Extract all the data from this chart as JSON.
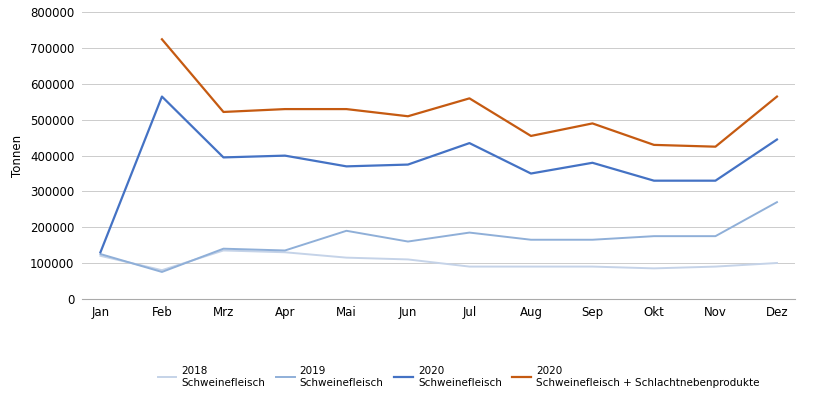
{
  "months": [
    "Jan",
    "Feb",
    "Mrz",
    "Apr",
    "Mai",
    "Jun",
    "Jul",
    "Aug",
    "Sep",
    "Okt",
    "Nov",
    "Dez"
  ],
  "series_2018": [
    120000,
    80000,
    135000,
    130000,
    115000,
    110000,
    90000,
    90000,
    90000,
    85000,
    90000,
    100000
  ],
  "series_2019": [
    125000,
    75000,
    140000,
    135000,
    190000,
    160000,
    185000,
    165000,
    165000,
    175000,
    175000,
    270000
  ],
  "series_2020_pork": [
    130000,
    565000,
    395000,
    400000,
    370000,
    375000,
    435000,
    350000,
    380000,
    330000,
    330000,
    445000
  ],
  "series_2020_total": [
    null,
    725000,
    522000,
    530000,
    530000,
    510000,
    560000,
    455000,
    490000,
    430000,
    425000,
    565000
  ],
  "color_2018": "#c5d3e8",
  "color_2019": "#8fafd8",
  "color_2020_pork": "#4472c4",
  "color_2020_total": "#c55a11",
  "ylabel": "Tonnen",
  "ylim": [
    0,
    800000
  ],
  "yticks": [
    0,
    100000,
    200000,
    300000,
    400000,
    500000,
    600000,
    700000,
    800000
  ],
  "legend_labels": [
    "2018\nSchweinefleisch",
    "2019\nSchweinefleisch",
    "2020\nSchweinefleisch",
    "2020\nSchweinefleisch + Schlachtnebenprodukte"
  ],
  "background_color": "#ffffff",
  "grid_color": "#cccccc"
}
